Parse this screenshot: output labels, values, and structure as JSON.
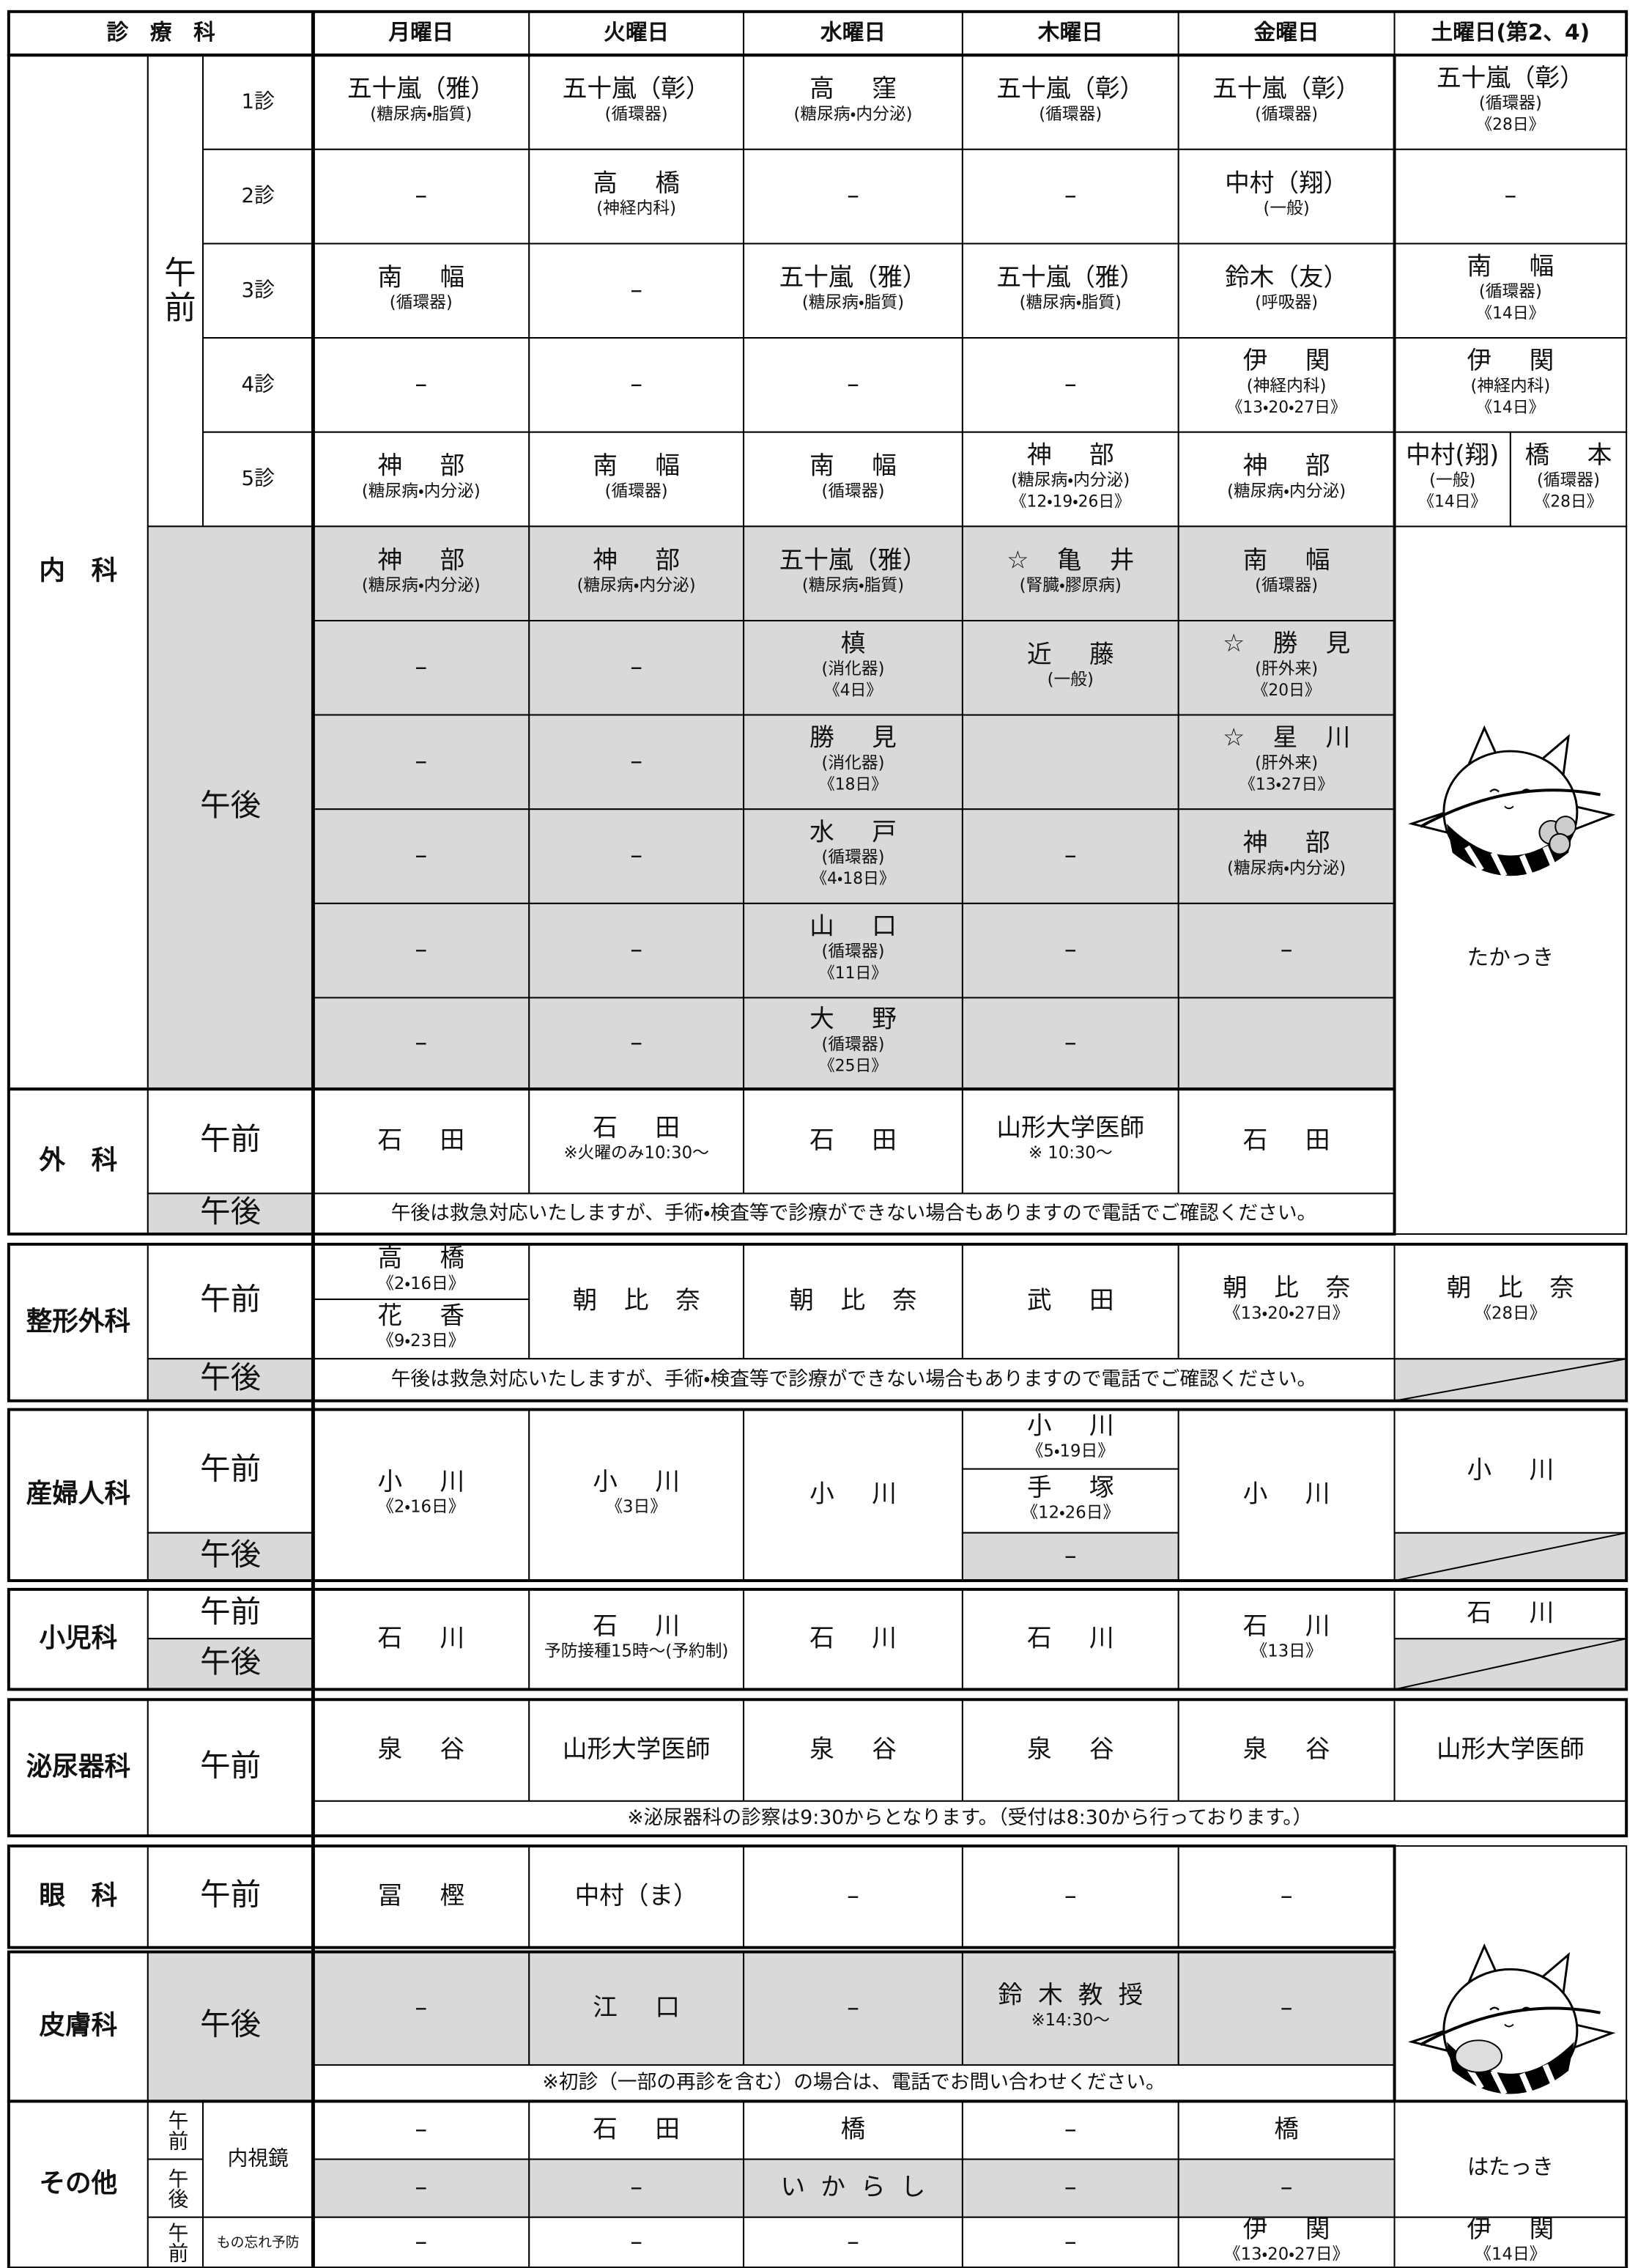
{
  "cells": [
    [
      "診　療　科"
    ],
    [
      "月曜日"
    ],
    [
      "火曜日"
    ],
    [
      "水曜日"
    ],
    [
      "木曜日"
    ],
    [
      "金曜日"
    ],
    [
      "土曜日(第2、4)"
    ],
    [
      "内　科"
    ],
    [
      "午前"
    ],
    [
      "1診"
    ],
    [
      "2診"
    ],
    [
      "3診"
    ],
    [
      "4診"
    ],
    [
      "5診"
    ],
    [
      "五十嵐（雅）",
      "(糖尿病・脂質)"
    ],
    [
      "五十嵐（彰）",
      "(循環器)"
    ],
    [
      "高窪",
      "(糖尿病・内分泌)"
    ],
    [
      "五十嵐（彰）",
      "(循環器)"
    ],
    [
      "五十嵐（彰）",
      "(循環器)"
    ],
    [
      "五十嵐（彰）",
      "(循環器)",
      "《28日》"
    ],
    [
      "–"
    ],
    [
      "高橋",
      "(神経内科)"
    ],
    [
      "–"
    ],
    [
      "–"
    ],
    [
      "中村（翔）",
      "(一般)"
    ],
    [
      "–"
    ],
    [
      "南幅",
      "(循環器)"
    ],
    [
      "–"
    ],
    [
      "五十嵐（雅）",
      "(糖尿病・脂質)"
    ],
    [
      "五十嵐（雅）",
      "(糖尿病・脂質)"
    ],
    [
      "鈴木（友）",
      "(呼吸器)"
    ],
    [
      "南幅",
      "(循環器)",
      "《14日》"
    ],
    [
      "–"
    ],
    [
      "–"
    ],
    [
      "–"
    ],
    [
      "–"
    ],
    [
      "伊関",
      "(神経内科)",
      "《13・20・27日》"
    ],
    [
      "伊関",
      "(神経内科)",
      "《14日》"
    ],
    [
      "神部",
      "(糖尿病・内分泌)"
    ],
    [
      "南幅",
      "(循環器)"
    ],
    [
      "南幅",
      "(循環器)"
    ],
    [
      "神部",
      "(糖尿病・内分泌)",
      "《12・19・26日》"
    ],
    [
      "神部",
      "(糖尿病・内分泌)"
    ],
    [
      "中村(翔)",
      "(一般)",
      "《14日》"
    ],
    [
      "橋本",
      "(循環器)",
      "《28日》"
    ],
    [
      "午後"
    ],
    [
      "神部",
      "(糖尿病・内分泌)"
    ],
    [
      "神部",
      "(糖尿病・内分泌)"
    ],
    [
      "五十嵐（雅）",
      "(糖尿病・脂質)"
    ],
    [
      "☆亀井",
      "(腎臓・膠原病)"
    ],
    [
      "南幅",
      "(循環器)"
    ],
    [
      "–"
    ],
    [
      "–"
    ],
    [
      "槙",
      "(消化器)",
      "《4日》"
    ],
    [
      "近藤",
      "(一般)"
    ],
    [
      "☆勝見",
      "(肝外来)",
      "《20日》"
    ],
    [
      "–"
    ],
    [
      "–"
    ],
    [
      "勝見",
      "(消化器)",
      "《18日》"
    ],
    [
      "☆星川",
      "(肝外来)",
      "《13・27日》"
    ],
    [
      "–"
    ],
    [
      "–"
    ],
    [
      "水戸",
      "(循環器)",
      "《4・18日》"
    ],
    [
      "–"
    ],
    [
      "神部",
      "(糖尿病・内分泌)"
    ],
    [
      "–"
    ],
    [
      "–"
    ],
    [
      "山口",
      "(循環器)",
      "《11日》"
    ],
    [
      "–"
    ],
    [
      "–"
    ],
    [
      "–"
    ],
    [
      "–"
    ],
    [
      "大野",
      "(循環器)",
      "《25日》"
    ],
    [
      "–"
    ],
    [
      "たかっき"
    ],
    [
      "外　科"
    ],
    [
      "午前"
    ],
    [
      "石田"
    ],
    [
      "石田",
      "※火曜のみ10:30〜"
    ],
    [
      "石田"
    ],
    [
      "山形大学医師",
      "※ 10:30〜"
    ],
    [
      "石田"
    ],
    [
      "午後"
    ],
    [
      "午後は救急対応いたしますが、手術・検査等で診療ができない場合もありますので電話でご確認ください。"
    ],
    [
      "整形外科"
    ],
    [
      "午前"
    ],
    [
      "高橋",
      "《2・16日》"
    ],
    [
      "花香",
      "《9・23日》"
    ],
    [
      "朝比奈"
    ],
    [
      "朝比奈"
    ],
    [
      "武田"
    ],
    [
      "朝比奈",
      "《13・20・27日》"
    ],
    [
      "朝比奈",
      "《28日》"
    ],
    [
      "午後"
    ],
    [
      "午後は救急対応いたしますが、手術・検査等で診療ができない場合もありますので電話でご確認ください。"
    ],
    [
      "産婦人科"
    ],
    [
      "午前"
    ],
    [
      "午後"
    ],
    [
      "小川",
      "《2・16日》"
    ],
    [
      "小川",
      "《3日》"
    ],
    [
      "小川"
    ],
    [
      "小川",
      "《5・19日》"
    ],
    [
      "手塚",
      "《12・26日》"
    ],
    [
      "–"
    ],
    [
      "小川"
    ],
    [
      "小川"
    ],
    [
      "小児科"
    ],
    [
      "午前"
    ],
    [
      "午後"
    ],
    [
      "石川"
    ],
    [
      "石川",
      "予防接種15時〜(予約制)"
    ],
    [
      "石川"
    ],
    [
      "石川"
    ],
    [
      "石川",
      "《13日》"
    ],
    [
      "石川"
    ],
    [
      "泌尿器科"
    ],
    [
      "午前"
    ],
    [
      "泉谷"
    ],
    [
      "山形大学医師"
    ],
    [
      "泉谷"
    ],
    [
      "泉谷"
    ],
    [
      "泉谷"
    ],
    [
      "山形大学医師"
    ],
    [
      "※泌尿器科の診察は9:30からとなります。（受付は8:30から行っております。）"
    ],
    [
      "眼　科"
    ],
    [
      "午前"
    ],
    [
      "冨樫"
    ],
    [
      "中村（ま）"
    ],
    [
      "–"
    ],
    [
      "–"
    ],
    [
      "–"
    ],
    [
      "皮膚科"
    ],
    [
      "午後"
    ],
    [
      "–"
    ],
    [
      "江口"
    ],
    [
      "–"
    ],
    [
      "鈴木教授",
      "※14:30〜"
    ],
    [
      "–"
    ],
    [
      "※初診（一部の再診を含む）の場合は、電話でお問い合わせください。"
    ],
    [
      "はたっき"
    ],
    [
      "その他"
    ],
    [
      "午前"
    ],
    [
      "午後"
    ],
    [
      "内視鏡"
    ],
    [
      "午前"
    ],
    [
      "もの忘れ予防"
    ],
    [
      "–"
    ],
    [
      "石田"
    ],
    [
      "橋"
    ],
    [
      "–"
    ],
    [
      "橋"
    ],
    [
      "–"
    ],
    [
      "–"
    ],
    [
      "いからし"
    ],
    [
      "–"
    ],
    [
      "–"
    ],
    [
      "–"
    ],
    [
      "–"
    ],
    [
      "–"
    ],
    [
      "–"
    ],
    [
      "伊関",
      "《13・20・27日》"
    ],
    [
      "伊関",
      "《14日》"
    ]
  ]
}
